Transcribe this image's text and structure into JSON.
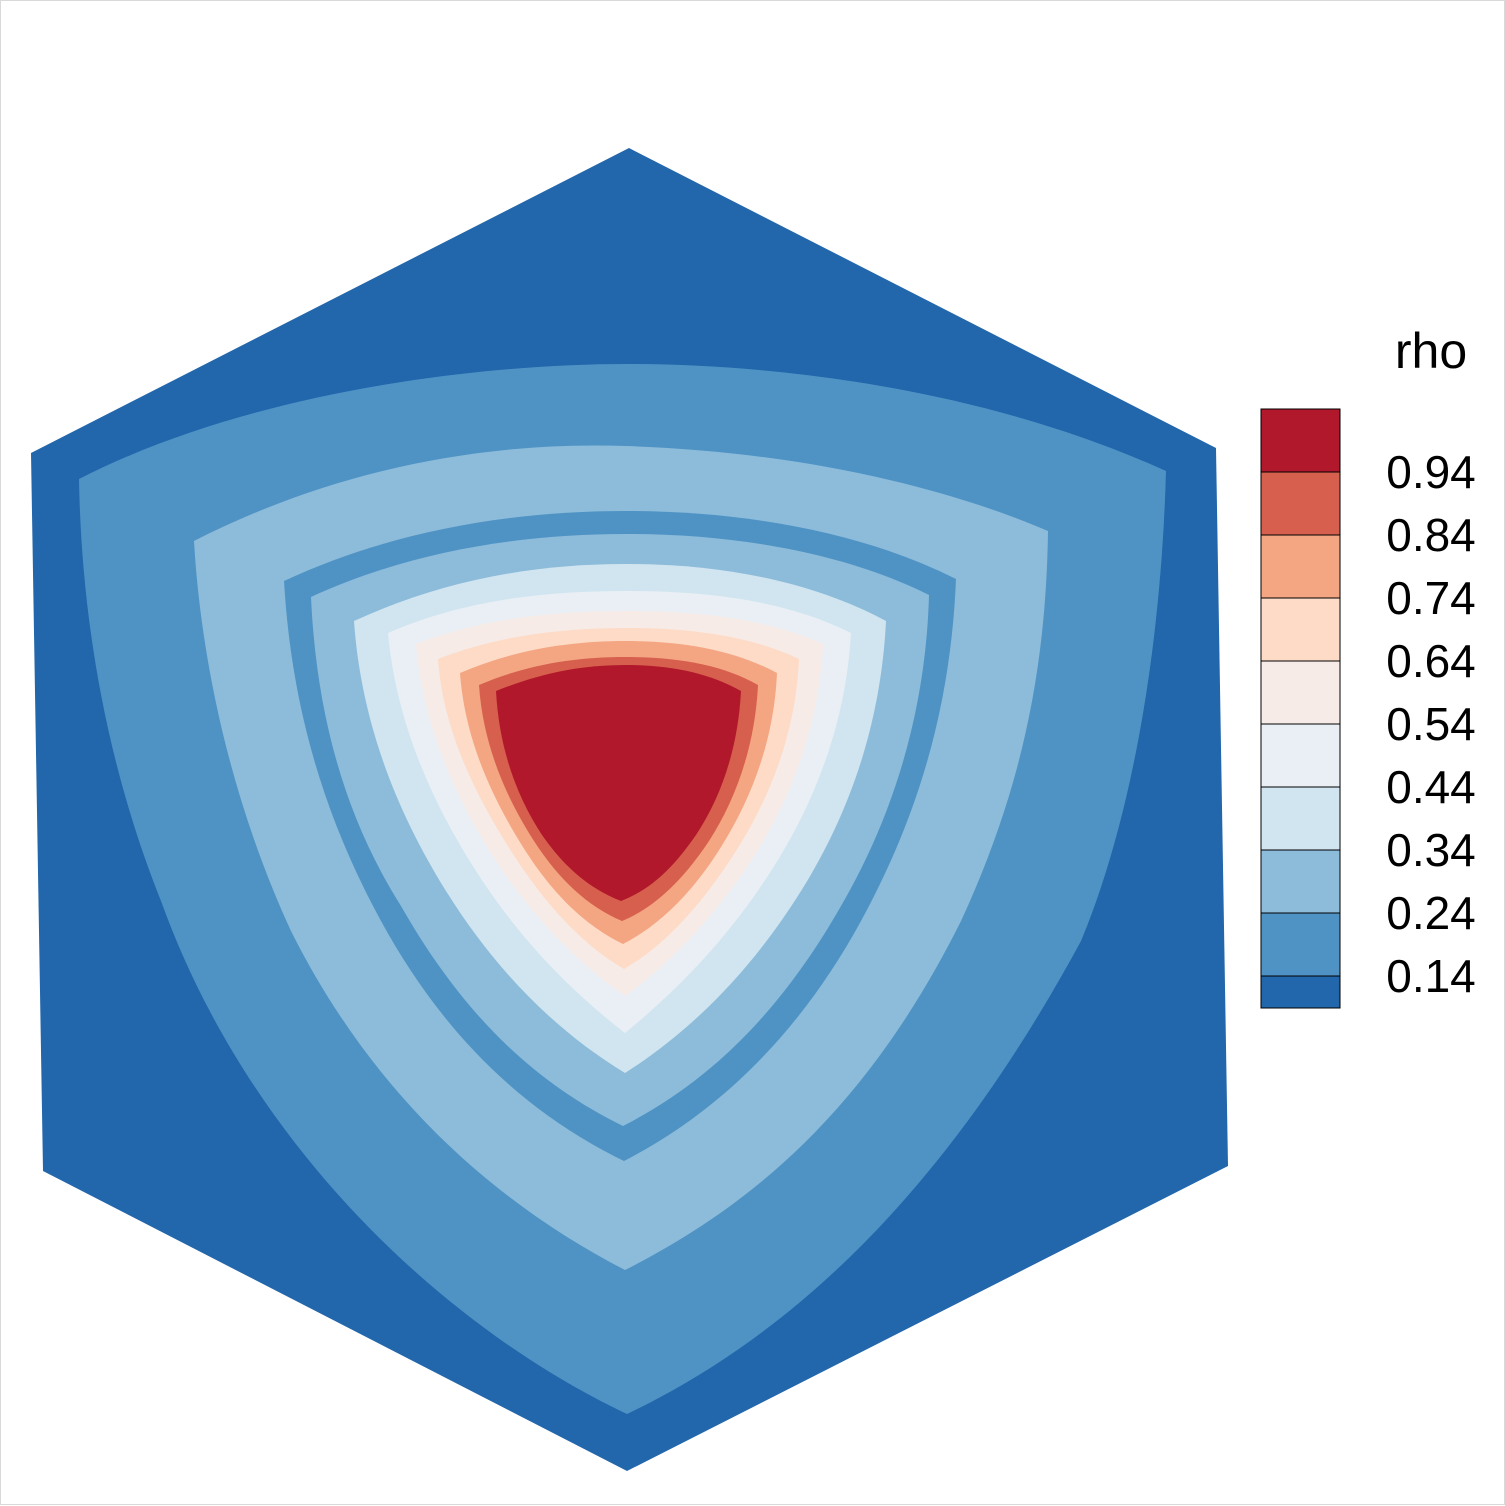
{
  "chart_data": {
    "type": "heatmap",
    "variable": "rho",
    "legend": {
      "title": "rho",
      "position": "right",
      "levels": [
        0.14,
        0.24,
        0.34,
        0.44,
        0.54,
        0.64,
        0.74,
        0.84,
        0.94
      ],
      "labels": [
        "0.94",
        "0.84",
        "0.74",
        "0.64",
        "0.54",
        "0.44",
        "0.34",
        "0.24",
        "0.14"
      ],
      "band_colors_top_to_bottom": [
        "#b2182b",
        "#d6604d",
        "#f4a582",
        "#fddbc7",
        "#f7ebe7",
        "#e9eff4",
        "#d1e5f0",
        "#8dbcda",
        "#4f93c5",
        "#2266ab"
      ]
    },
    "domain_shape": "hexagon",
    "peak_value_region": "above 0.94",
    "grid": false
  }
}
